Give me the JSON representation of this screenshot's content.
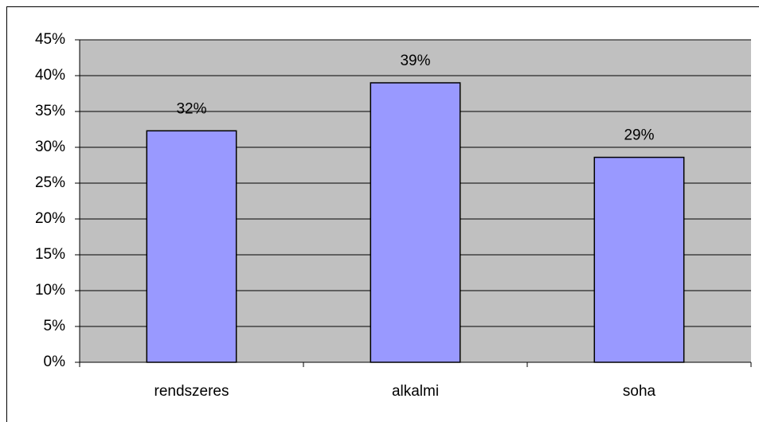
{
  "chart_data": {
    "type": "bar",
    "categories": [
      "rendszeres",
      "alkalmi",
      "soha"
    ],
    "values": [
      32.3,
      39,
      28.6
    ],
    "value_labels": [
      "32%",
      "39%",
      "29%"
    ],
    "color": "#9999ff",
    "ylim": [
      0,
      45
    ],
    "yticks": [
      {
        "value": 0,
        "label": "0%"
      },
      {
        "value": 5,
        "label": "5%"
      },
      {
        "value": 10,
        "label": "10%"
      },
      {
        "value": 15,
        "label": "15%"
      },
      {
        "value": 20,
        "label": "20%"
      },
      {
        "value": 25,
        "label": "25%"
      },
      {
        "value": 30,
        "label": "30%"
      },
      {
        "value": 35,
        "label": "35%"
      },
      {
        "value": 40,
        "label": "40%"
      },
      {
        "value": 45,
        "label": "45%"
      }
    ],
    "grid": true
  }
}
